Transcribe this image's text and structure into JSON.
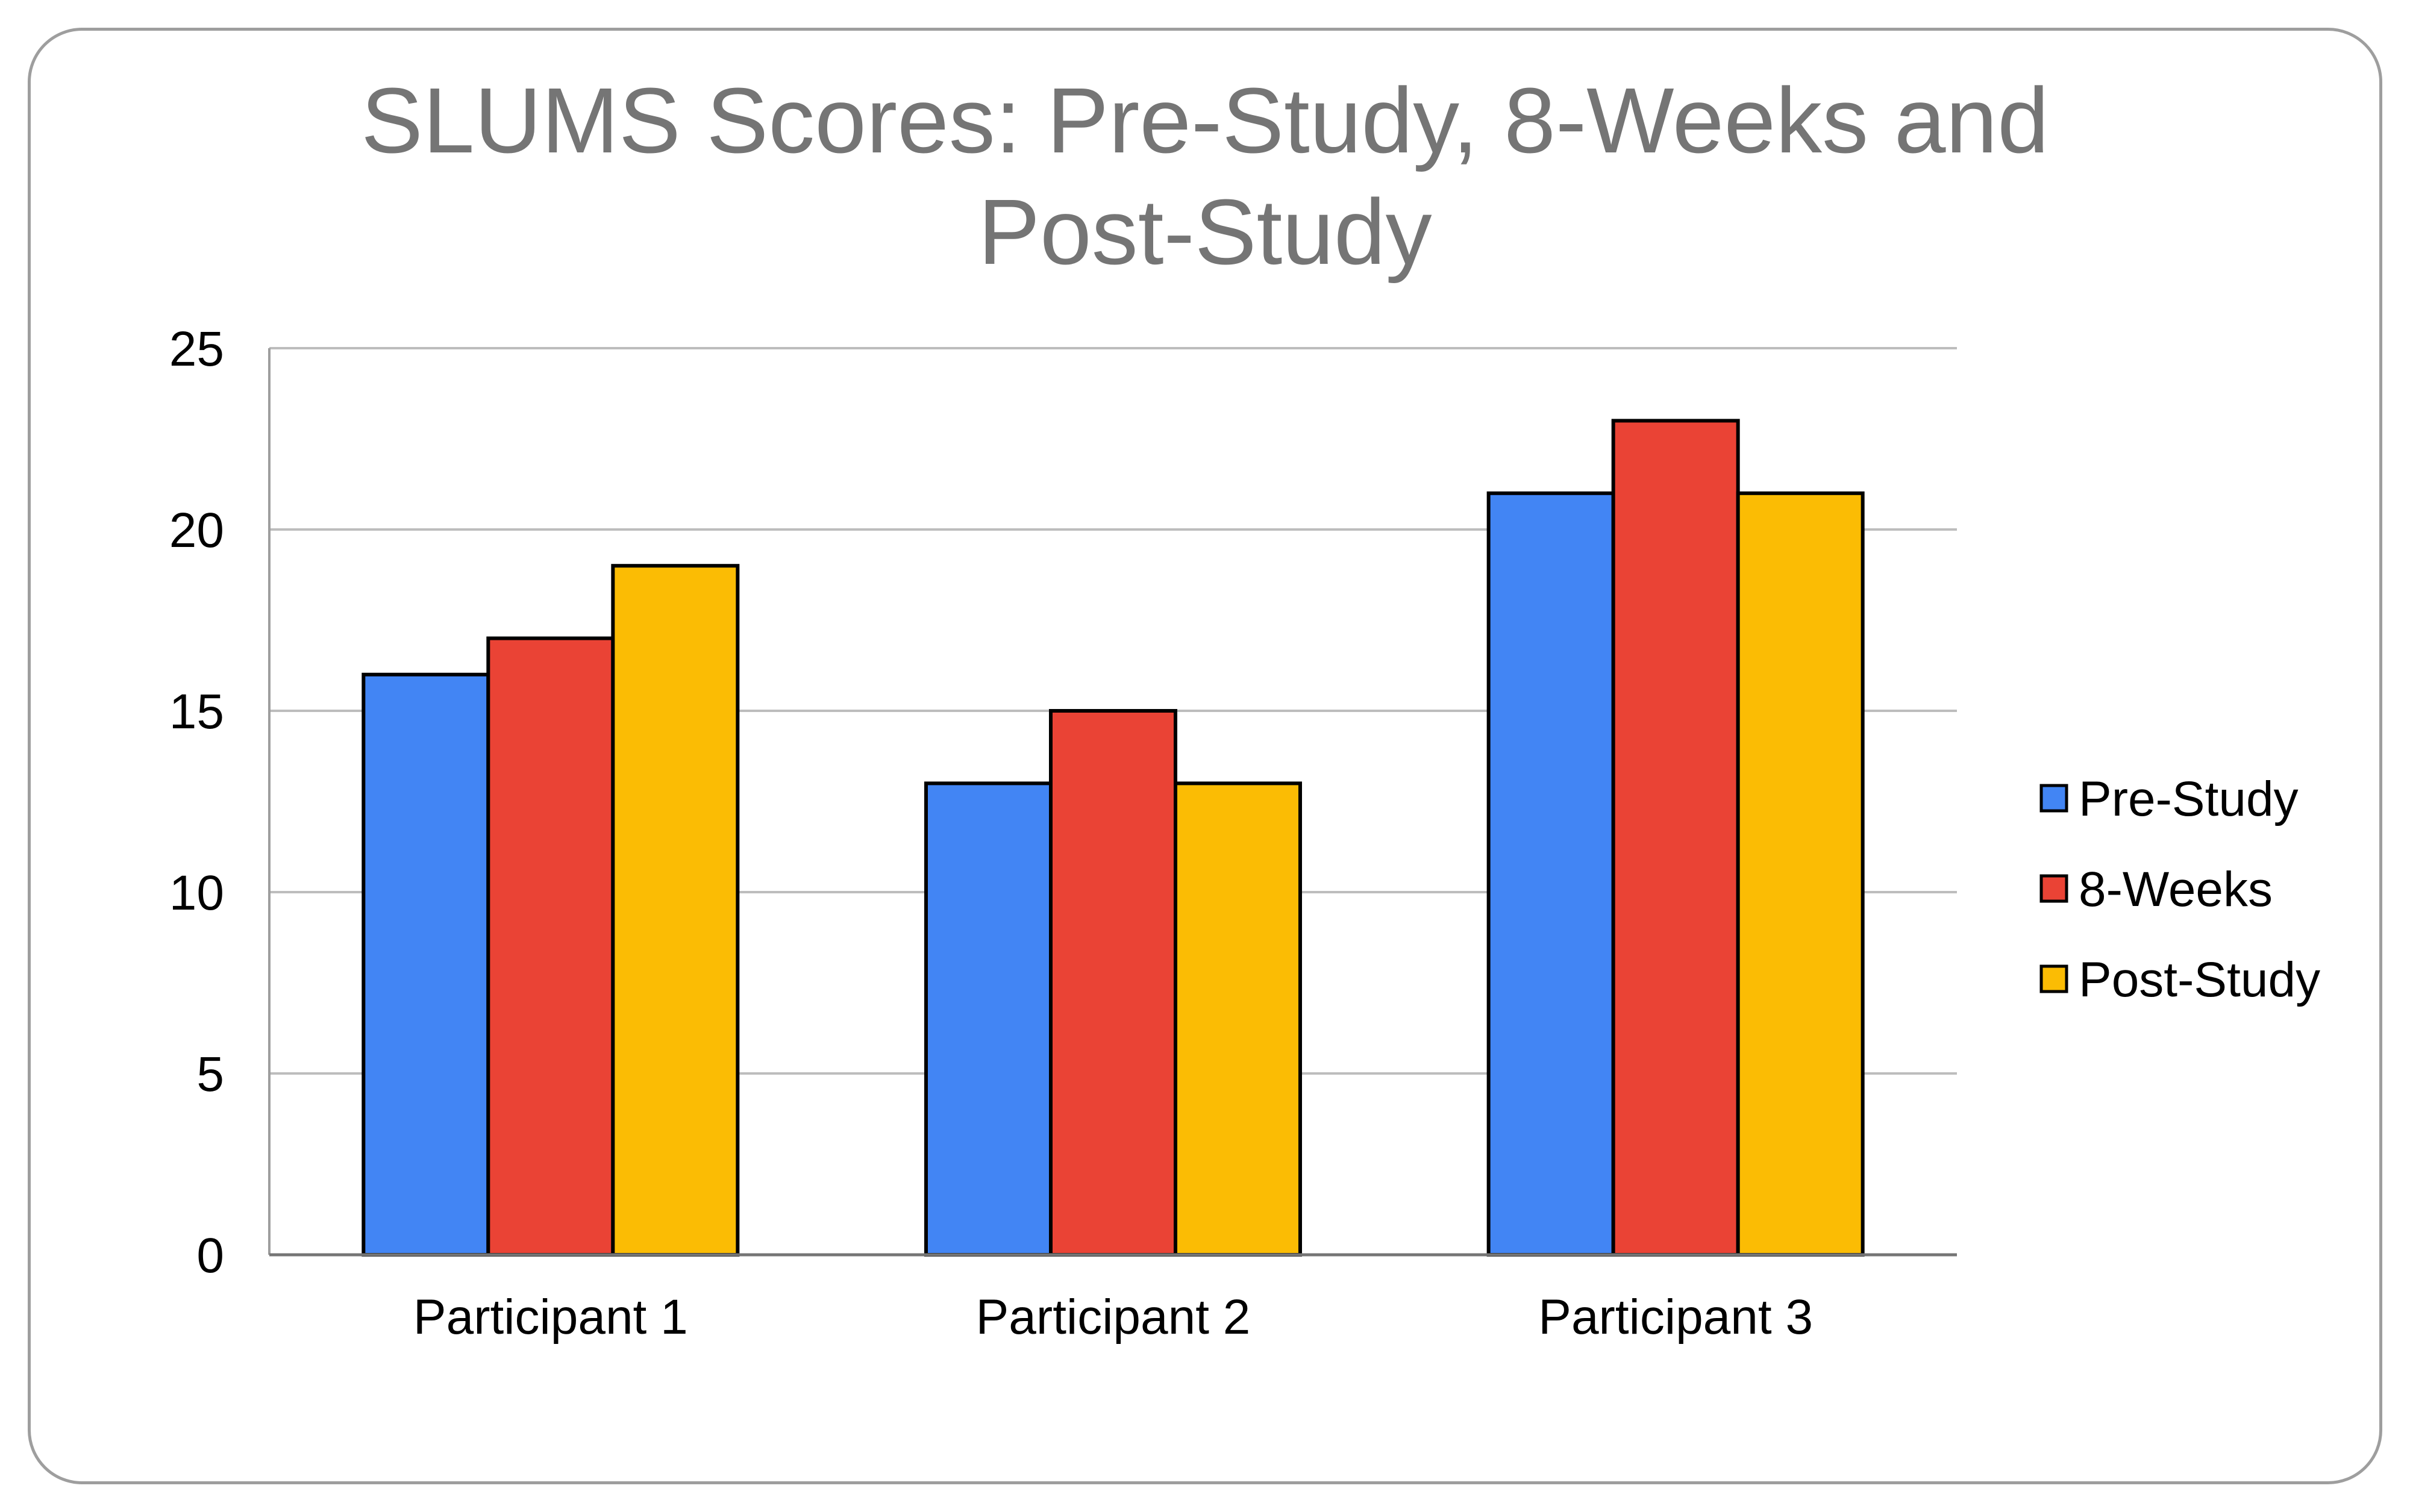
{
  "chart_data": {
    "type": "bar",
    "title": "SLUMS Scores: Pre-Study, 8-Weeks and Post-Study",
    "title_lines": [
      "SLUMS Scores: Pre-Study, 8-Weeks and",
      "Post-Study"
    ],
    "xlabel": "",
    "ylabel": "",
    "ylim": [
      0,
      25
    ],
    "yticks": [
      0,
      5,
      10,
      15,
      20,
      25
    ],
    "grid": true,
    "legend_position": "right",
    "categories": [
      "Participant 1",
      "Participant 2",
      "Participant 3"
    ],
    "series": [
      {
        "name": "Pre-Study",
        "color": "#4285f4",
        "values": [
          16,
          13,
          21
        ]
      },
      {
        "name": "8-Weeks",
        "color": "#ea4335",
        "values": [
          17,
          15,
          23
        ]
      },
      {
        "name": "Post-Study",
        "color": "#fbbc04",
        "values": [
          19,
          13,
          21
        ]
      }
    ]
  }
}
